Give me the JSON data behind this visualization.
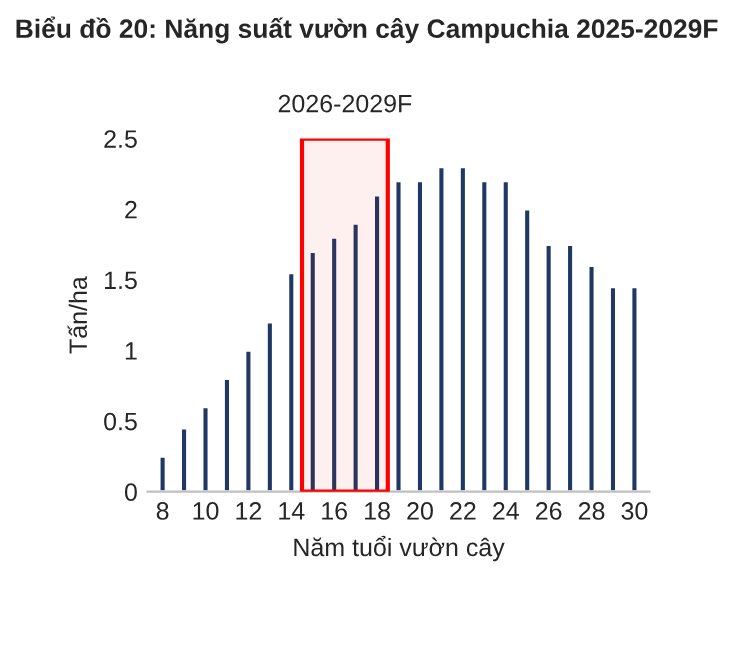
{
  "chart_data": {
    "type": "bar",
    "title": "Biểu đồ 20: Năng suất vườn cây Campuchia 2025-2029F",
    "xlabel": "Năm tuổi vườn cây",
    "ylabel": "Tấn/ha",
    "x": [
      8,
      9,
      10,
      11,
      12,
      13,
      14,
      15,
      16,
      17,
      18,
      19,
      20,
      21,
      22,
      23,
      24,
      25,
      26,
      27,
      28,
      29,
      30
    ],
    "values": [
      0.25,
      0.45,
      0.6,
      0.8,
      1.0,
      1.2,
      1.55,
      1.7,
      1.8,
      1.9,
      2.1,
      2.2,
      2.2,
      2.3,
      2.3,
      2.2,
      2.2,
      2.0,
      1.75,
      1.75,
      1.6,
      1.45,
      1.45
    ],
    "color": "#1f3864",
    "xlim": [
      7.3,
      30.7
    ],
    "xticks": [
      8,
      10,
      12,
      14,
      16,
      18,
      20,
      22,
      24,
      26,
      28,
      30
    ],
    "ylim": [
      0,
      2.5
    ],
    "yticks": [
      0,
      0.5,
      1,
      1.5,
      2,
      2.5
    ],
    "bands": [
      {
        "axis": "x",
        "from": 14.5,
        "to": 18.5,
        "label": "2026-2029F",
        "color": "#ff0000"
      }
    ],
    "grid": false,
    "legend": false
  }
}
